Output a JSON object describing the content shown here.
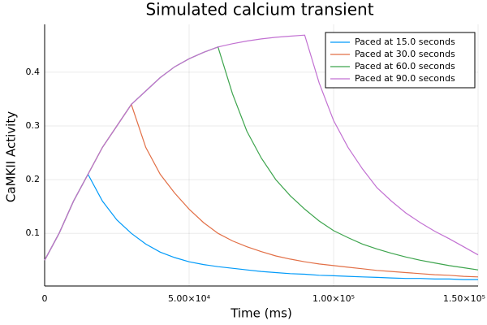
{
  "chart_data": {
    "type": "line",
    "title": "Simulated calcium transient",
    "x_label": "Time (ms)",
    "y_label": "CaMKII Activity",
    "x": [
      0,
      5000,
      10000,
      15000,
      20000,
      25000,
      30000,
      35000,
      40000,
      45000,
      50000,
      55000,
      60000,
      65000,
      70000,
      75000,
      80000,
      85000,
      90000,
      95000,
      100000,
      105000,
      110000,
      115000,
      120000,
      125000,
      130000,
      135000,
      140000,
      145000,
      150000
    ],
    "series": [
      {
        "name": "Paced at 15.0 seconds",
        "color": "#009af9",
        "values": [
          0.05,
          0.1,
          0.16,
          0.21,
          0.16,
          0.125,
          0.1,
          0.08,
          0.065,
          0.055,
          0.047,
          0.042,
          0.038,
          0.035,
          0.032,
          0.029,
          0.027,
          0.025,
          0.024,
          0.022,
          0.021,
          0.02,
          0.019,
          0.018,
          0.017,
          0.016,
          0.016,
          0.015,
          0.015,
          0.014,
          0.014
        ]
      },
      {
        "name": "Paced at 30.0 seconds",
        "color": "#e26f46",
        "values": [
          0.05,
          0.1,
          0.16,
          0.21,
          0.26,
          0.3,
          0.34,
          0.26,
          0.21,
          0.175,
          0.145,
          0.12,
          0.1,
          0.086,
          0.075,
          0.066,
          0.058,
          0.052,
          0.047,
          0.043,
          0.04,
          0.037,
          0.034,
          0.031,
          0.029,
          0.027,
          0.025,
          0.023,
          0.022,
          0.02,
          0.019
        ]
      },
      {
        "name": "Paced at 60.0 seconds",
        "color": "#3da44d",
        "values": [
          0.05,
          0.1,
          0.16,
          0.21,
          0.26,
          0.3,
          0.34,
          0.365,
          0.39,
          0.41,
          0.425,
          0.437,
          0.447,
          0.36,
          0.29,
          0.24,
          0.2,
          0.17,
          0.145,
          0.123,
          0.105,
          0.092,
          0.08,
          0.071,
          0.063,
          0.056,
          0.05,
          0.045,
          0.04,
          0.036,
          0.032
        ]
      },
      {
        "name": "Paced at 90.0 seconds",
        "color": "#c271d2",
        "values": [
          0.05,
          0.1,
          0.16,
          0.21,
          0.26,
          0.3,
          0.34,
          0.365,
          0.39,
          0.41,
          0.425,
          0.437,
          0.447,
          0.453,
          0.458,
          0.462,
          0.465,
          0.467,
          0.469,
          0.38,
          0.31,
          0.26,
          0.22,
          0.185,
          0.16,
          0.138,
          0.12,
          0.104,
          0.09,
          0.075,
          0.06
        ]
      }
    ],
    "xlim": [
      0,
      150000
    ],
    "xticks": [
      0,
      {
        "value": 50000,
        "label": "5.00×10⁴"
      },
      {
        "value": 100000,
        "label": "1.00×10⁵"
      },
      {
        "value": 150000,
        "label": "1.50×10⁵"
      }
    ],
    "ylim": [
      0.002,
      0.489
    ],
    "yticks": [
      0.1,
      0.2,
      0.3,
      0.4
    ],
    "grid": true,
    "legend": "top-right"
  }
}
